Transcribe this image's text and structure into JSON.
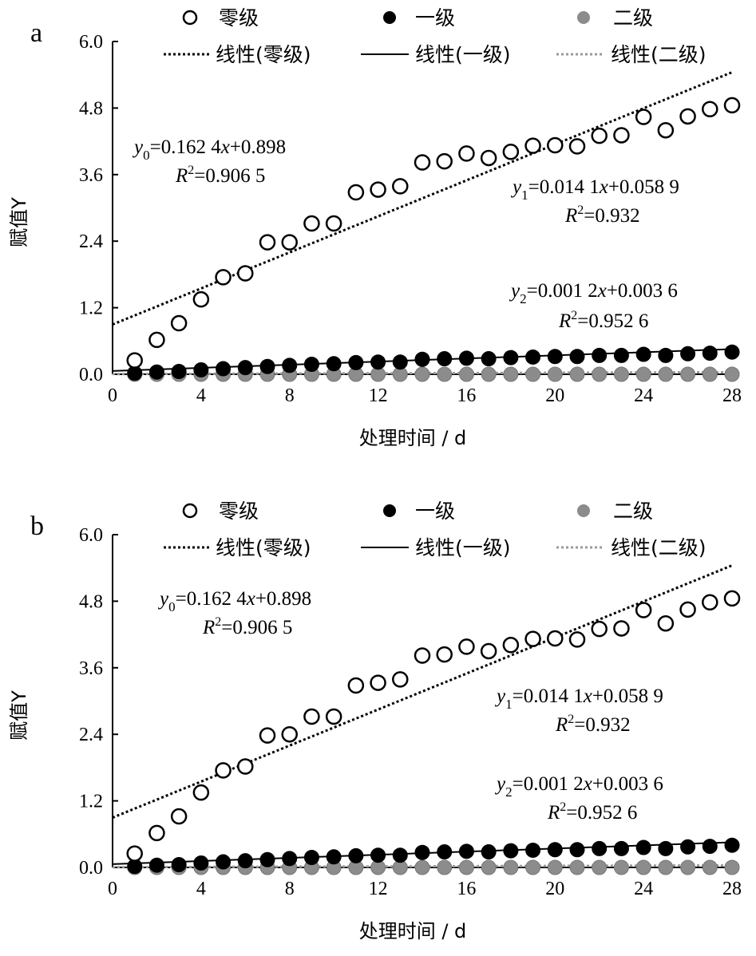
{
  "chart_data": [
    {
      "type": "scatter",
      "panel_label": "a",
      "xlabel": "处理时间 / d",
      "ylabel": "赋值Y",
      "xlim": [
        0,
        28
      ],
      "ylim": [
        0,
        6.0
      ],
      "x_ticks": [
        "0",
        "4",
        "8",
        "12",
        "16",
        "20",
        "24",
        "28"
      ],
      "y_ticks": [
        "0.0",
        "1.2",
        "2.4",
        "3.6",
        "4.8",
        "6.0"
      ],
      "legend_position": "top",
      "x": [
        1,
        2,
        3,
        4,
        5,
        6,
        7,
        8,
        9,
        10,
        11,
        12,
        13,
        14,
        15,
        16,
        17,
        18,
        19,
        20,
        21,
        22,
        23,
        24,
        25,
        26,
        27,
        28
      ],
      "series": [
        {
          "name": "零级",
          "marker": "open-circle",
          "color": "#000000",
          "values": [
            0.25,
            0.62,
            0.92,
            1.35,
            1.75,
            1.82,
            2.38,
            2.38,
            2.72,
            2.72,
            3.28,
            3.33,
            3.39,
            3.82,
            3.84,
            3.98,
            3.9,
            4.01,
            4.12,
            4.13,
            4.11,
            4.3,
            4.31,
            4.64,
            4.4,
            4.65,
            4.78,
            4.85
          ]
        },
        {
          "name": "一级",
          "marker": "filled-circle",
          "color": "#000000",
          "values": [
            0.02,
            0.04,
            0.05,
            0.08,
            0.1,
            0.12,
            0.14,
            0.16,
            0.18,
            0.19,
            0.21,
            0.22,
            0.22,
            0.27,
            0.28,
            0.29,
            0.28,
            0.3,
            0.31,
            0.32,
            0.32,
            0.34,
            0.34,
            0.36,
            0.34,
            0.37,
            0.38,
            0.4
          ]
        },
        {
          "name": "二级",
          "marker": "filled-circle",
          "color": "#8c8c8c",
          "values": [
            0.0,
            0.0,
            0.0,
            0.0,
            0.0,
            0.0,
            0.0,
            0.0,
            0.0,
            0.0,
            0.0,
            0.0,
            0.0,
            0.0,
            0.0,
            0.0,
            0.0,
            0.0,
            0.0,
            0.0,
            0.0,
            0.0,
            0.0,
            0.0,
            0.0,
            0.0,
            0.0,
            0.0
          ]
        }
      ],
      "trendlines": [
        {
          "name": "线性(零级)",
          "style": "dotted",
          "color": "#000000",
          "slope": 0.1624,
          "intercept": 0.898
        },
        {
          "name": "线性(一级)",
          "style": "solid",
          "color": "#000000",
          "slope": 0.0141,
          "intercept": 0.0589
        },
        {
          "name": "线性(二级)",
          "style": "dotted",
          "color": "#9a9a9a",
          "slope": 0.0012,
          "intercept": 0.0036
        }
      ],
      "equations": [
        {
          "var": "y",
          "sub": "0",
          "rhs": "=0.162 4",
          "x": "x",
          "tail": "+0.898",
          "r2": "=0.906 5"
        },
        {
          "var": "y",
          "sub": "1",
          "rhs": "=0.014 1",
          "x": "x",
          "tail": "+0.058 9",
          "r2": "=0.932"
        },
        {
          "var": "y",
          "sub": "2",
          "rhs": "=0.001 2",
          "x": "x",
          "tail": "+0.003 6",
          "r2": "=0.952 6"
        }
      ]
    },
    {
      "type": "scatter",
      "panel_label": "b",
      "xlabel": "处理时间 / d",
      "ylabel": "赋值Y",
      "xlim": [
        0,
        28
      ],
      "ylim": [
        0,
        6.0
      ],
      "x_ticks": [
        "0",
        "4",
        "8",
        "12",
        "16",
        "20",
        "24",
        "28"
      ],
      "y_ticks": [
        "0.0",
        "1.2",
        "2.4",
        "3.6",
        "4.8",
        "6.0"
      ],
      "legend_position": "top",
      "x": [
        1,
        2,
        3,
        4,
        5,
        6,
        7,
        8,
        9,
        10,
        11,
        12,
        13,
        14,
        15,
        16,
        17,
        18,
        19,
        20,
        21,
        22,
        23,
        24,
        25,
        26,
        27,
        28
      ],
      "series": [
        {
          "name": "零级",
          "marker": "open-circle",
          "color": "#000000",
          "values": [
            0.25,
            0.62,
            0.92,
            1.35,
            1.75,
            1.82,
            2.38,
            2.4,
            2.72,
            2.72,
            3.28,
            3.33,
            3.39,
            3.82,
            3.84,
            3.98,
            3.9,
            4.01,
            4.12,
            4.13,
            4.11,
            4.3,
            4.31,
            4.64,
            4.4,
            4.65,
            4.78,
            4.85
          ]
        },
        {
          "name": "一级",
          "marker": "filled-circle",
          "color": "#000000",
          "values": [
            0.02,
            0.04,
            0.05,
            0.08,
            0.1,
            0.12,
            0.14,
            0.16,
            0.18,
            0.19,
            0.21,
            0.22,
            0.22,
            0.27,
            0.28,
            0.29,
            0.28,
            0.3,
            0.31,
            0.32,
            0.32,
            0.34,
            0.34,
            0.36,
            0.34,
            0.37,
            0.38,
            0.4
          ]
        },
        {
          "name": "二级",
          "marker": "filled-circle",
          "color": "#8c8c8c",
          "values": [
            0.0,
            0.0,
            0.0,
            0.0,
            0.0,
            0.0,
            0.0,
            0.0,
            0.0,
            0.0,
            0.0,
            0.0,
            0.0,
            0.0,
            0.0,
            0.0,
            0.0,
            0.0,
            0.0,
            0.0,
            0.0,
            0.0,
            0.0,
            0.0,
            0.0,
            0.0,
            0.0,
            0.0
          ]
        }
      ],
      "trendlines": [
        {
          "name": "线性(零级)",
          "style": "dotted",
          "color": "#000000",
          "slope": 0.1624,
          "intercept": 0.898
        },
        {
          "name": "线性(一级)",
          "style": "solid",
          "color": "#000000",
          "slope": 0.0141,
          "intercept": 0.0589
        },
        {
          "name": "线性(二级)",
          "style": "dotted",
          "color": "#9a9a9a",
          "slope": 0.0012,
          "intercept": 0.0036
        }
      ],
      "equations": [
        {
          "var": "y",
          "sub": "0",
          "rhs": "=0.162 4",
          "x": "x",
          "tail": "+0.898",
          "r2": "=0.906 5"
        },
        {
          "var": "y",
          "sub": "1",
          "rhs": "=0.014 1",
          "x": "x",
          "tail": "+0.058 9",
          "r2": "=0.932"
        },
        {
          "var": "y",
          "sub": "2",
          "rhs": "=0.001 2",
          "x": "x",
          "tail": "+0.003 6",
          "r2": "=0.952 6"
        }
      ]
    }
  ]
}
